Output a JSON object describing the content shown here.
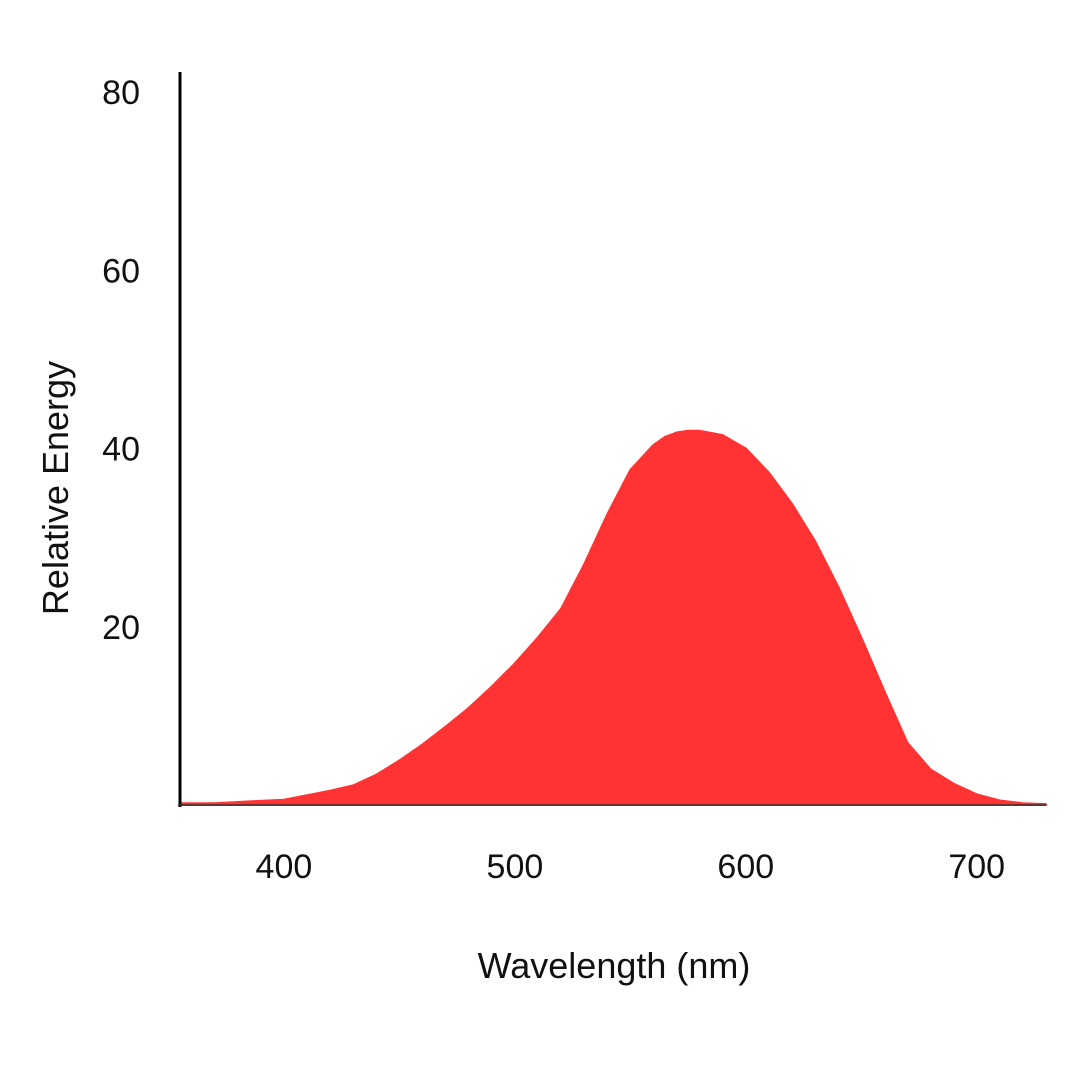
{
  "chart_data": {
    "type": "area",
    "title": "",
    "xlabel": "Wavelength (nm)",
    "ylabel": "Relative Energy",
    "xlim": [
      355,
      730
    ],
    "ylim": [
      0,
      80
    ],
    "x_ticks": [
      400,
      500,
      600,
      700
    ],
    "x_tick_labels": [
      "400",
      "500",
      "600",
      "700"
    ],
    "y_ticks": [
      20,
      40,
      60,
      80
    ],
    "y_tick_labels": [
      "20",
      "40",
      "60",
      "80"
    ],
    "grid": false,
    "legend": "none",
    "fill_color": "#ff3333",
    "series": [
      {
        "name": "Relative Energy",
        "x": [
          355,
          370,
          385,
          400,
          410,
          420,
          430,
          440,
          450,
          460,
          470,
          480,
          490,
          500,
          510,
          520,
          530,
          540,
          550,
          560,
          565,
          570,
          575,
          580,
          590,
          600,
          610,
          620,
          630,
          640,
          650,
          660,
          670,
          680,
          690,
          700,
          710,
          720,
          730
        ],
        "values": [
          0.2,
          0.2,
          0.4,
          0.6,
          1.1,
          1.6,
          2.2,
          3.4,
          5.0,
          6.8,
          8.8,
          10.9,
          13.3,
          15.9,
          18.8,
          22.0,
          27.0,
          32.6,
          37.6,
          40.4,
          41.3,
          41.8,
          42.0,
          42.0,
          41.5,
          40.0,
          37.3,
          33.8,
          29.6,
          24.5,
          18.8,
          12.8,
          7.0,
          4.0,
          2.4,
          1.2,
          0.5,
          0.2,
          0.1
        ]
      }
    ]
  }
}
